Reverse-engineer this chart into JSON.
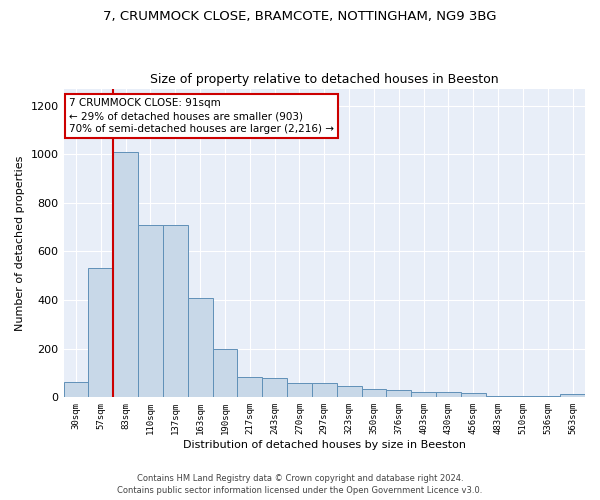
{
  "title1": "7, CRUMMOCK CLOSE, BRAMCOTE, NOTTINGHAM, NG9 3BG",
  "title2": "Size of property relative to detached houses in Beeston",
  "xlabel": "Distribution of detached houses by size in Beeston",
  "ylabel": "Number of detached properties",
  "bar_values": [
    65,
    530,
    1010,
    710,
    710,
    410,
    200,
    85,
    80,
    60,
    60,
    45,
    35,
    30,
    20,
    20,
    18,
    5,
    5,
    5,
    12
  ],
  "bar_labels": [
    "30sqm",
    "57sqm",
    "83sqm",
    "110sqm",
    "137sqm",
    "163sqm",
    "190sqm",
    "217sqm",
    "243sqm",
    "270sqm",
    "297sqm",
    "323sqm",
    "350sqm",
    "376sqm",
    "403sqm",
    "430sqm",
    "456sqm",
    "483sqm",
    "510sqm",
    "536sqm",
    "563sqm"
  ],
  "bar_color": "#c8d8e8",
  "bar_edge_color": "#6090b8",
  "vline_color": "#cc0000",
  "annotation_text": "7 CRUMMOCK CLOSE: 91sqm\n← 29% of detached houses are smaller (903)\n70% of semi-detached houses are larger (2,216) →",
  "annotation_box_color": "#ffffff",
  "annotation_box_edge": "#cc0000",
  "ylim": [
    0,
    1270
  ],
  "yticks": [
    0,
    200,
    400,
    600,
    800,
    1000,
    1200
  ],
  "background_color": "#e8eef8",
  "footer": "Contains HM Land Registry data © Crown copyright and database right 2024.\nContains public sector information licensed under the Open Government Licence v3.0."
}
